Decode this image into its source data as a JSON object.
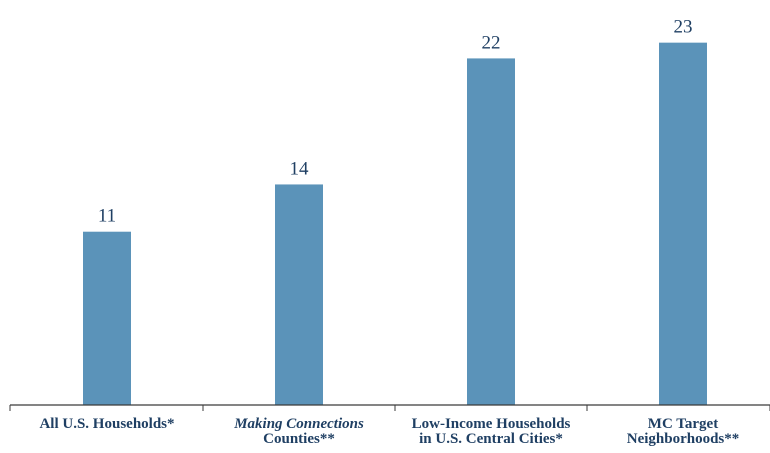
{
  "chart_data": {
    "type": "bar",
    "categories": [
      [
        "All U.S. Households*"
      ],
      [
        "Making Connections",
        "Counties**"
      ],
      [
        "Low-Income Households",
        "in U.S. Central Cities*"
      ],
      [
        "MC Target",
        "Neighborhoods**"
      ]
    ],
    "category_italic_lines": [
      [],
      [
        0
      ],
      [],
      []
    ],
    "values": [
      11,
      14,
      22,
      23
    ],
    "data_labels": [
      "11",
      "14",
      "22",
      "23"
    ],
    "ylim": [
      0,
      25.2
    ],
    "grid": false,
    "bar_color": "#5b93b9",
    "label_color": "#1f3f63"
  }
}
